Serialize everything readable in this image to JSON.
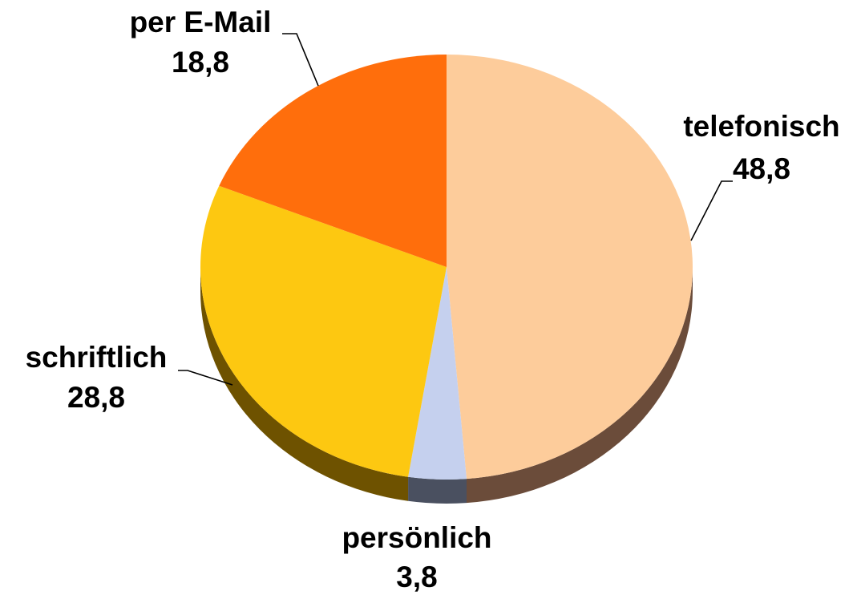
{
  "chart_data": {
    "type": "pie",
    "categories": [
      "telefonisch",
      "persönlich",
      "schriftlich",
      "per E-Mail"
    ],
    "values": [
      48.8,
      3.8,
      28.8,
      18.8
    ],
    "value_labels": [
      "48,8",
      "3,8",
      "28,8",
      "18,8"
    ],
    "colors": [
      "#fdcc9b",
      "#c5d0ee",
      "#fdc811",
      "#ff6e0c"
    ],
    "side_colors": [
      "#6b4c3a",
      "#4a5060",
      "#6e5200",
      "#7a3000"
    ]
  }
}
